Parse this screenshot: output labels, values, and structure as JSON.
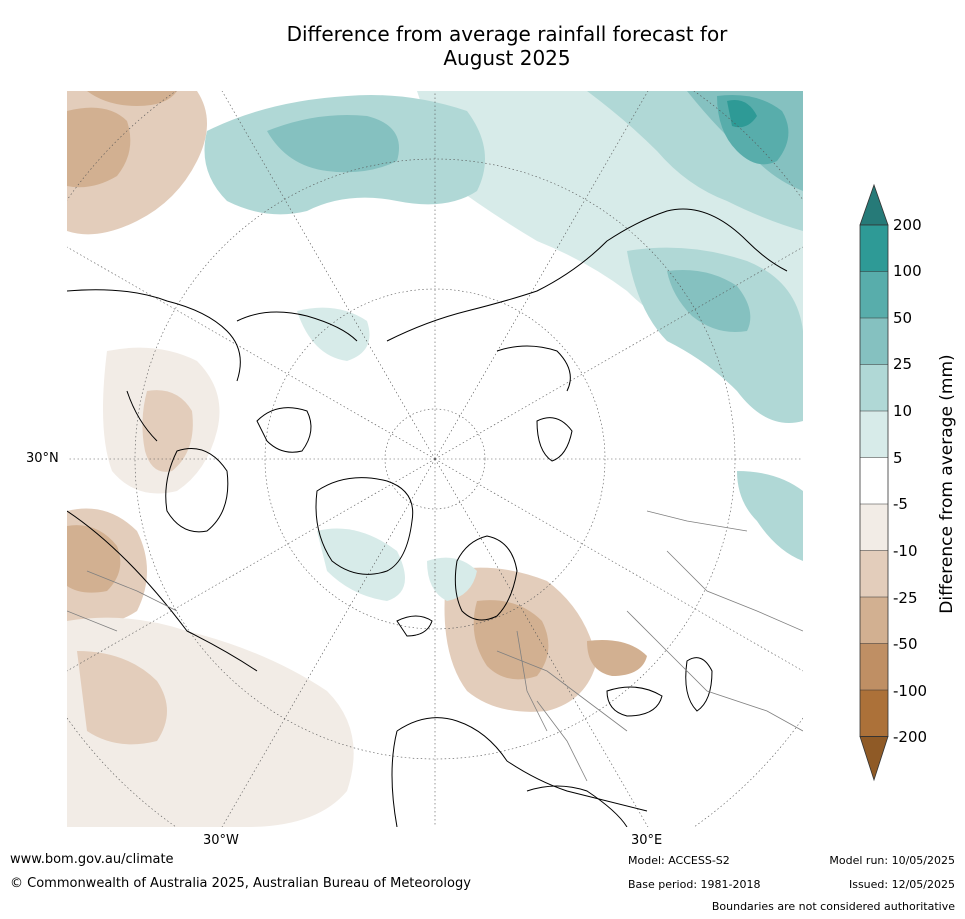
{
  "title": {
    "line1": "Difference from average rainfall forecast for",
    "line2": "August 2025"
  },
  "map": {
    "projection": "north-polar-stereographic",
    "graticule_labels": {
      "lat_left": "30°N",
      "lon_bottom_left": "30°W",
      "lon_bottom_right": "30°E"
    },
    "lines": {
      "land_border": "#000000",
      "country_border": "#808080",
      "graticule": "#555555"
    }
  },
  "colorbar": {
    "title": "Difference from average (mm)",
    "ticks": [
      "200",
      "100",
      "50",
      "25",
      "10",
      "5",
      "-5",
      "-10",
      "-25",
      "-50",
      "-100",
      "-200"
    ],
    "colors": {
      "over_200": "#267a78",
      "100_to_200": "#2e9a96",
      "50_to_100": "#58adab",
      "25_to_50": "#85c1c0",
      "10_to_25": "#b0d8d6",
      "5_to_10": "#d7ebe9",
      "neutral": "#ffffff",
      "minus5_to_minus10": "#f2ece6",
      "minus10_to_minus25": "#e3cdbb",
      "minus25_to_minus50": "#d2b091",
      "minus50_to_minus100": "#bf8f64",
      "minus100_to_minus200": "#ac7139",
      "under_minus200": "#8f5a26"
    }
  },
  "footer": {
    "website": "www.bom.gov.au/climate",
    "copyright": "© Commonwealth of Australia 2025, Australian Bureau of Meteorology",
    "model": "Model: ACCESS-S2",
    "base_period": "Base period: 1981-2018",
    "model_run": "Model run: 10/05/2025",
    "issued": "Issued: 12/05/2025",
    "disclaimer": "Boundaries are not considered authoritative"
  }
}
